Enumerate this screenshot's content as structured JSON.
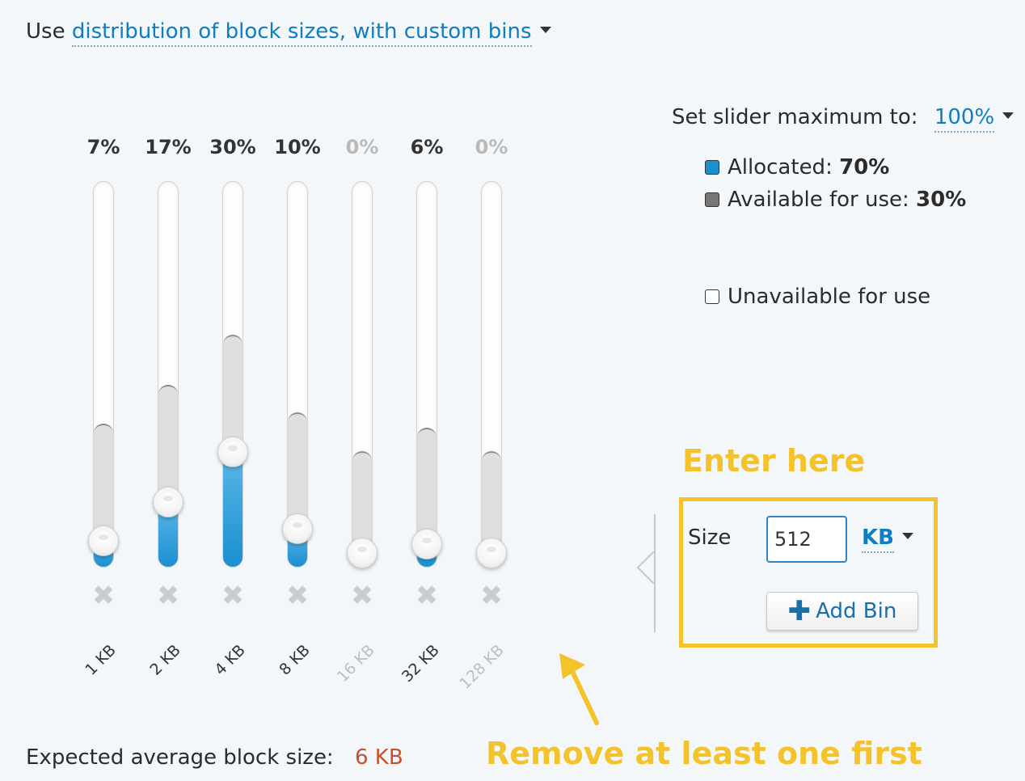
{
  "header": {
    "prefix": "Use",
    "mode": "distribution of block sizes, with custom bins"
  },
  "bins": [
    {
      "label": "1 KB",
      "percent": "7%",
      "allocated": 0.07,
      "available": 0.37,
      "muted": false
    },
    {
      "label": "2 KB",
      "percent": "17%",
      "allocated": 0.17,
      "available": 0.47,
      "muted": false
    },
    {
      "label": "4 KB",
      "percent": "30%",
      "allocated": 0.3,
      "available": 0.6,
      "muted": false
    },
    {
      "label": "8 KB",
      "percent": "10%",
      "allocated": 0.1,
      "available": 0.4,
      "muted": false
    },
    {
      "label": "16 KB",
      "percent": "0%",
      "allocated": 0.0,
      "available": 0.3,
      "muted": true
    },
    {
      "label": "32 KB",
      "percent": "6%",
      "allocated": 0.06,
      "available": 0.36,
      "muted": false
    },
    {
      "label": "128 KB",
      "percent": "0%",
      "allocated": 0.0,
      "available": 0.3,
      "muted": true
    }
  ],
  "remove_icon": "close-x-icon",
  "slider_max": {
    "label": "Set slider maximum to:",
    "value": "100%"
  },
  "legend": {
    "allocated_label": "Allocated:",
    "allocated_value": "70%",
    "available_label": "Available for use:",
    "available_value": "30%",
    "unavailable_label": "Unavailable for use"
  },
  "add_bin": {
    "size_label": "Size",
    "size_value": "512",
    "unit": "KB",
    "button_label": "Add Bin",
    "button_icon": "plus-icon"
  },
  "annotations": {
    "enter_here": "Enter here",
    "remove_note": "Remove at least one first"
  },
  "footer": {
    "avg_label": "Expected average block size:",
    "avg_value": "6 KB"
  },
  "colors": {
    "accent": "#0f7dbf",
    "allocated": "#1b8fcf",
    "available": "#dedede",
    "highlight": "#f4c22b",
    "avg_value": "#c8502a"
  }
}
